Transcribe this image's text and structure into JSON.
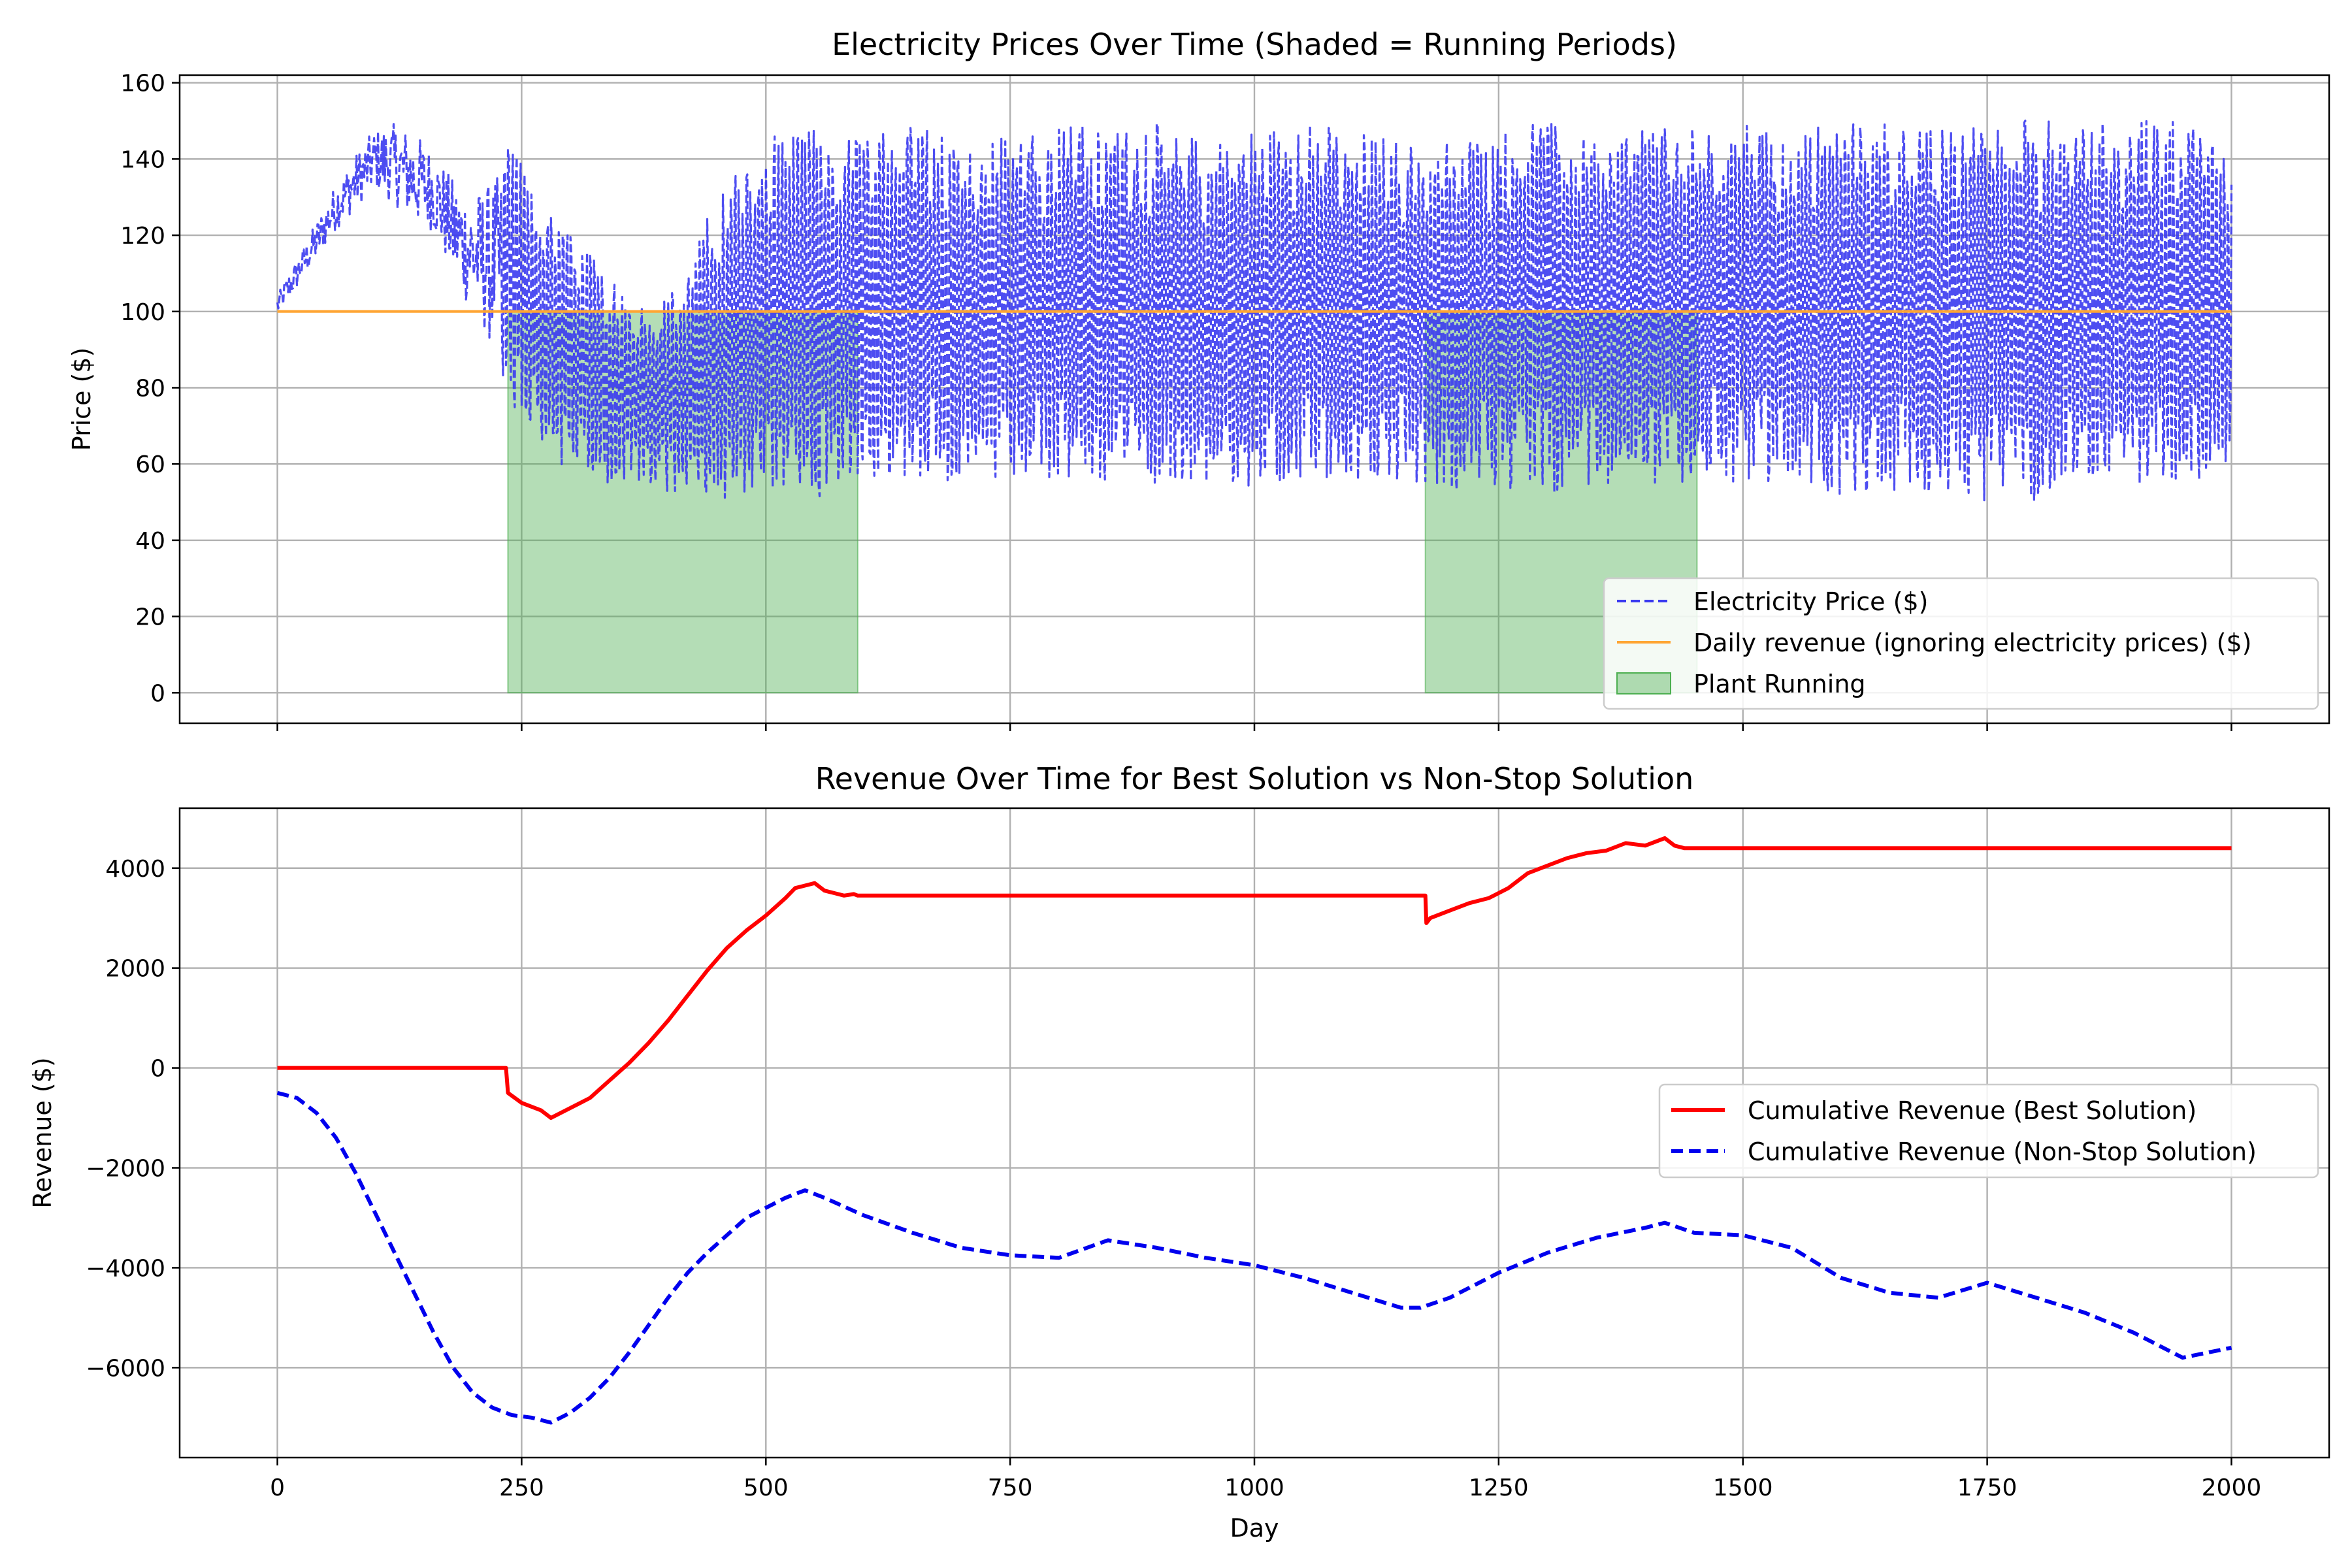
{
  "colors": {
    "price": "#3a3af0",
    "revenue_flat": "#ffa533",
    "running_fill": "#4caf50",
    "best": "#ff0000",
    "nonstop": "#0000ee"
  },
  "chart_data": [
    {
      "type": "line",
      "title": "Electricity Prices Over Time (Shaded = Running Periods)",
      "xlabel": "",
      "ylabel": "Price ($)",
      "xlim": [
        -100,
        2100
      ],
      "ylim": [
        -8,
        162
      ],
      "xticks": [
        0,
        250,
        500,
        750,
        1000,
        1250,
        1500,
        1750,
        2000
      ],
      "yticks": [
        0,
        20,
        40,
        60,
        80,
        100,
        120,
        140,
        160
      ],
      "grid": true,
      "legend_position": "lower-right",
      "legend": [
        "Electricity Price ($)",
        "Daily revenue (ignoring electricity prices) ($)",
        "Plant Running"
      ],
      "series": [
        {
          "name": "Electricity Price ($)",
          "style": "dashed",
          "x": [
            0,
            20,
            40,
            60,
            80,
            100,
            120,
            140,
            160,
            180,
            200,
            220,
            240,
            260,
            280,
            300,
            320,
            340,
            360,
            380,
            400,
            420,
            440,
            460,
            480,
            500,
            520,
            540,
            560,
            580,
            600,
            650,
            700,
            750,
            800,
            850,
            900,
            950,
            1000,
            1050,
            1100,
            1150,
            1200,
            1250,
            1300,
            1350,
            1400,
            1450,
            1500,
            1550,
            1600,
            1650,
            1700,
            1750,
            1800,
            1850,
            1900,
            1950,
            2000
          ],
          "low": [
            98,
            105,
            112,
            120,
            125,
            130,
            125,
            120,
            118,
            105,
            95,
            85,
            75,
            68,
            62,
            58,
            56,
            55,
            54,
            53,
            52,
            53,
            52,
            50,
            52,
            54,
            52,
            50,
            52,
            55,
            56,
            55,
            55,
            55,
            52,
            55,
            55,
            55,
            52,
            55,
            55,
            55,
            52,
            52,
            52,
            55,
            55,
            55,
            55,
            55,
            52,
            52,
            52,
            50,
            50,
            55,
            55,
            52,
            55
          ],
          "high": [
            105,
            115,
            125,
            135,
            143,
            150,
            152,
            150,
            145,
            138,
            135,
            140,
            145,
            135,
            128,
            120,
            115,
            108,
            105,
            100,
            105,
            110,
            125,
            135,
            140,
            148,
            150,
            150,
            150,
            145,
            145,
            150,
            145,
            148,
            150,
            148,
            150,
            145,
            148,
            150,
            148,
            145,
            145,
            148,
            150,
            145,
            150,
            148,
            150,
            148,
            150,
            150,
            148,
            150,
            152,
            150,
            150,
            150,
            145
          ]
        },
        {
          "name": "Daily revenue (ignoring electricity prices) ($)",
          "style": "solid",
          "x": [
            0,
            2000
          ],
          "y": [
            100,
            100
          ]
        }
      ],
      "shaded_regions": [
        {
          "name": "Plant Running",
          "x_start": 236,
          "x_end": 594,
          "y_min": 0,
          "y_max": 100
        },
        {
          "name": "Plant Running",
          "x_start": 1175,
          "x_end": 1453,
          "y_min": 0,
          "y_max": 100
        }
      ]
    },
    {
      "type": "line",
      "title": "Revenue Over Time for Best Solution vs Non-Stop Solution",
      "xlabel": "Day",
      "ylabel": "Revenue ($)",
      "xlim": [
        -100,
        2100
      ],
      "ylim": [
        -7800,
        5200
      ],
      "xticks": [
        0,
        250,
        500,
        750,
        1000,
        1250,
        1500,
        1750,
        2000
      ],
      "yticks": [
        -6000,
        -4000,
        -2000,
        0,
        2000,
        4000
      ],
      "grid": true,
      "legend_position": "center-right",
      "legend": [
        "Cumulative Revenue (Best Solution)",
        "Cumulative Revenue (Non-Stop Solution)"
      ],
      "series": [
        {
          "name": "Cumulative Revenue (Best Solution)",
          "style": "solid",
          "x": [
            0,
            234,
            236,
            250,
            270,
            280,
            300,
            320,
            340,
            360,
            380,
            400,
            420,
            440,
            460,
            480,
            500,
            520,
            530,
            540,
            550,
            560,
            570,
            580,
            590,
            594,
            1175,
            1176,
            1180,
            1200,
            1220,
            1240,
            1260,
            1280,
            1300,
            1320,
            1340,
            1360,
            1380,
            1400,
            1420,
            1430,
            1440,
            1453,
            2000
          ],
          "y": [
            0,
            0,
            -500,
            -700,
            -850,
            -1000,
            -800,
            -600,
            -250,
            100,
            500,
            950,
            1450,
            1950,
            2400,
            2750,
            3050,
            3400,
            3600,
            3650,
            3700,
            3550,
            3500,
            3450,
            3480,
            3450,
            3450,
            2900,
            3000,
            3150,
            3300,
            3400,
            3600,
            3900,
            4050,
            4200,
            4300,
            4350,
            4500,
            4450,
            4600,
            4450,
            4400,
            4400,
            4400
          ]
        },
        {
          "name": "Cumulative Revenue (Non-Stop Solution)",
          "style": "dashed",
          "x": [
            0,
            20,
            40,
            60,
            80,
            100,
            120,
            140,
            160,
            180,
            200,
            220,
            240,
            260,
            280,
            300,
            320,
            340,
            360,
            380,
            400,
            420,
            440,
            460,
            480,
            500,
            520,
            540,
            560,
            600,
            650,
            700,
            750,
            800,
            850,
            900,
            950,
            1000,
            1050,
            1100,
            1150,
            1170,
            1200,
            1250,
            1300,
            1350,
            1400,
            1420,
            1450,
            1500,
            1550,
            1600,
            1650,
            1700,
            1750,
            1800,
            1850,
            1900,
            1920,
            1950,
            2000
          ],
          "y": [
            -500,
            -600,
            -900,
            -1400,
            -2100,
            -2900,
            -3700,
            -4500,
            -5300,
            -6000,
            -6500,
            -6800,
            -6950,
            -7000,
            -7100,
            -6900,
            -6600,
            -6200,
            -5700,
            -5150,
            -4600,
            -4100,
            -3700,
            -3350,
            -3000,
            -2800,
            -2600,
            -2450,
            -2600,
            -2950,
            -3300,
            -3600,
            -3750,
            -3800,
            -3450,
            -3600,
            -3800,
            -3950,
            -4200,
            -4500,
            -4800,
            -4800,
            -4600,
            -4100,
            -3700,
            -3400,
            -3200,
            -3100,
            -3300,
            -3350,
            -3600,
            -4200,
            -4500,
            -4600,
            -4300,
            -4600,
            -4900,
            -5300,
            -5500,
            -5800,
            -5600
          ]
        }
      ]
    }
  ]
}
